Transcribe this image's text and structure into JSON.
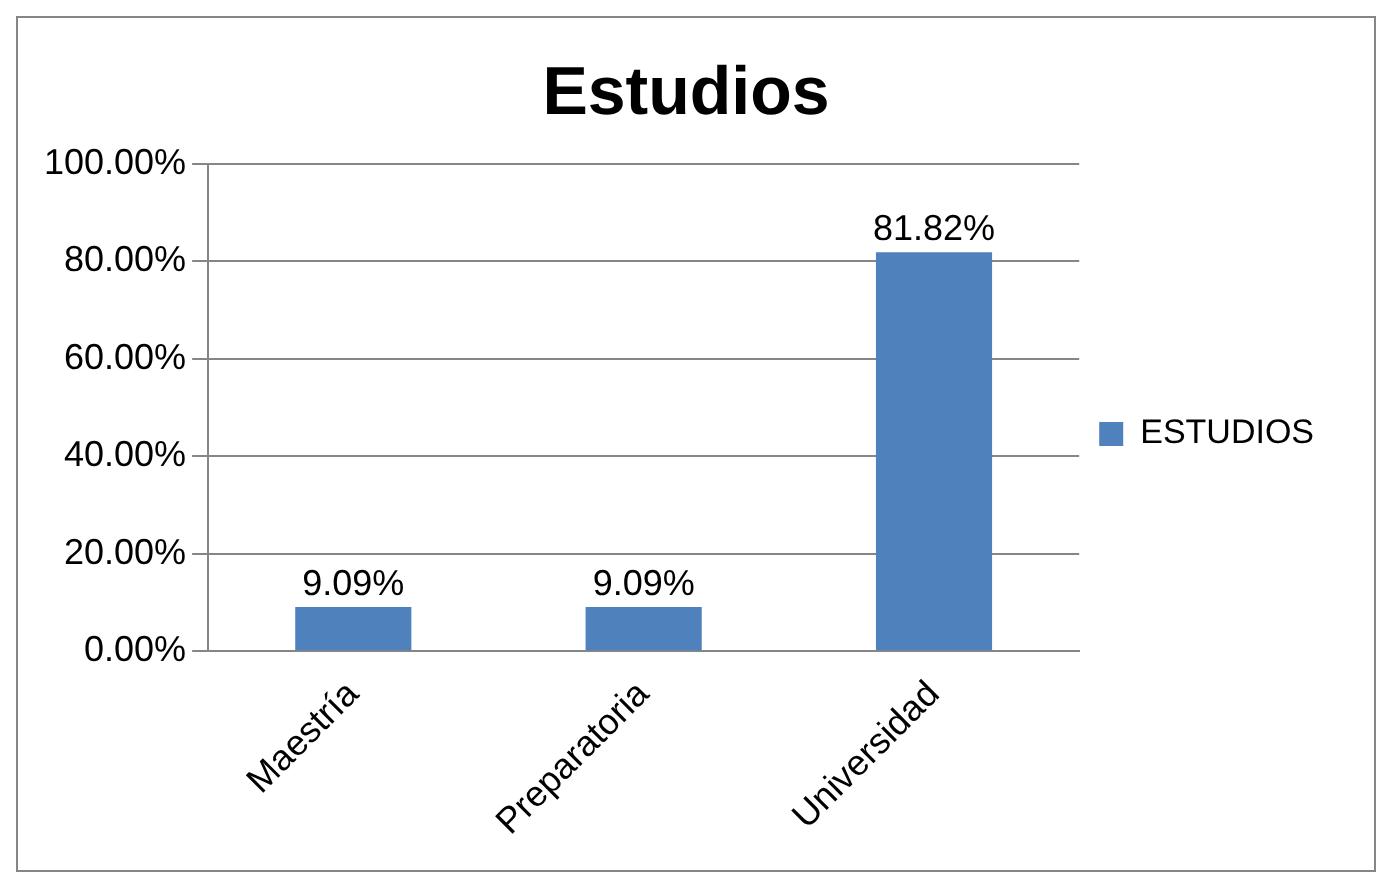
{
  "chart_data": {
    "type": "bar",
    "title": "Estudios",
    "categories": [
      "Maestría",
      "Preparatoria",
      "Universidad"
    ],
    "series": [
      {
        "name": "ESTUDIOS",
        "color": "#4f81bd",
        "values": [
          9.09,
          9.09,
          81.82
        ],
        "value_labels": [
          "9.09%",
          "9.09%",
          "81.82%"
        ]
      }
    ],
    "ylim": [
      0,
      100
    ],
    "yticks": [
      {
        "value": 0,
        "label": "0.00%"
      },
      {
        "value": 20,
        "label": "20.00%"
      },
      {
        "value": 40,
        "label": "40.00%"
      },
      {
        "value": 60,
        "label": "60.00%"
      },
      {
        "value": 80,
        "label": "80.00%"
      },
      {
        "value": 100,
        "label": "100.00%"
      }
    ],
    "grid": "y",
    "legend": "right"
  }
}
